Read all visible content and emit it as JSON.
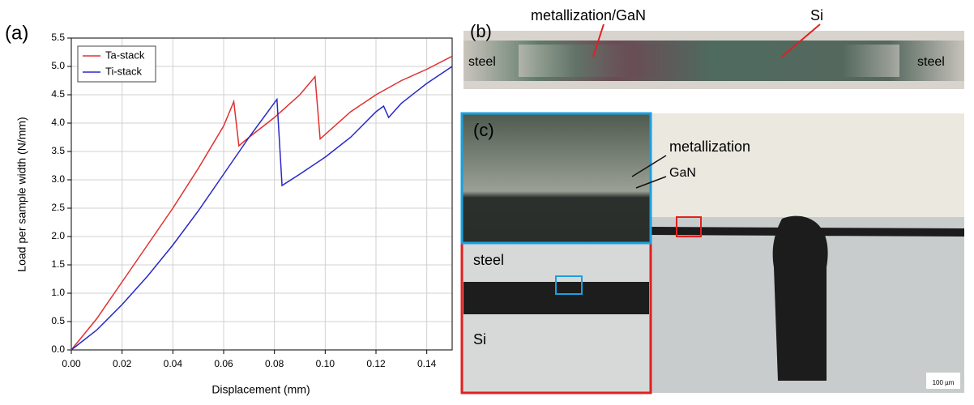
{
  "chart_data": {
    "type": "line",
    "x_label": "Displacement (mm)",
    "y_label": "Load per sample width (N/mm)",
    "xlim": [
      0,
      0.15
    ],
    "ylim": [
      0,
      5.5
    ],
    "xticks": [
      {
        "value": 0,
        "label": "0.00"
      },
      {
        "value": 0.02,
        "label": "0.02"
      },
      {
        "value": 0.04,
        "label": "0.04"
      },
      {
        "value": 0.06,
        "label": "0.06"
      },
      {
        "value": 0.08,
        "label": "0.08"
      },
      {
        "value": 0.1,
        "label": "0.10"
      },
      {
        "value": 0.12,
        "label": "0.12"
      },
      {
        "value": 0.14,
        "label": "0.14"
      }
    ],
    "yticks": [
      {
        "value": 0,
        "label": "0.0"
      },
      0.5,
      {
        "value": 1,
        "label": "1.0"
      },
      1.5,
      {
        "value": 2,
        "label": "2.0"
      },
      2.5,
      {
        "value": 3,
        "label": "3.0"
      },
      3.5,
      {
        "value": 4,
        "label": "4.0"
      },
      4.5,
      {
        "value": 5,
        "label": "5.0"
      },
      5.5
    ],
    "grid": true,
    "legend": "upper left",
    "series": [
      {
        "name": "Ta-stack",
        "color": "#e03030",
        "x": [
          0,
          0.01,
          0.02,
          0.03,
          0.04,
          0.05,
          0.06,
          0.064,
          0.066,
          0.07,
          0.08,
          0.09,
          0.096,
          0.098,
          0.11,
          0.12,
          0.13,
          0.14,
          0.15
        ],
        "values": [
          0,
          0.55,
          1.2,
          1.85,
          2.5,
          3.2,
          3.95,
          4.38,
          3.6,
          3.75,
          4.1,
          4.5,
          4.82,
          3.72,
          4.2,
          4.5,
          4.75,
          4.95,
          5.18
        ]
      },
      {
        "name": "Ti-stack",
        "color": "#2828c8",
        "x": [
          0,
          0.01,
          0.02,
          0.03,
          0.04,
          0.05,
          0.06,
          0.07,
          0.081,
          0.083,
          0.09,
          0.1,
          0.11,
          0.12,
          0.123,
          0.125,
          0.13,
          0.14,
          0.15
        ],
        "values": [
          0,
          0.35,
          0.8,
          1.3,
          1.85,
          2.45,
          3.1,
          3.75,
          4.42,
          2.9,
          3.1,
          3.4,
          3.75,
          4.2,
          4.3,
          4.1,
          4.35,
          4.7,
          5.0
        ]
      }
    ]
  },
  "panels": {
    "a": "(a)",
    "b": "(b)",
    "c": "(c)",
    "b_metal": "metallization/GaN",
    "b_si": "Si",
    "b_steel_left": "steel",
    "b_steel_right": "steel",
    "c_metallization": "metallization",
    "c_gan": "GaN",
    "c_steel": "steel",
    "c_si": "Si",
    "c_scale": "100 µm"
  }
}
